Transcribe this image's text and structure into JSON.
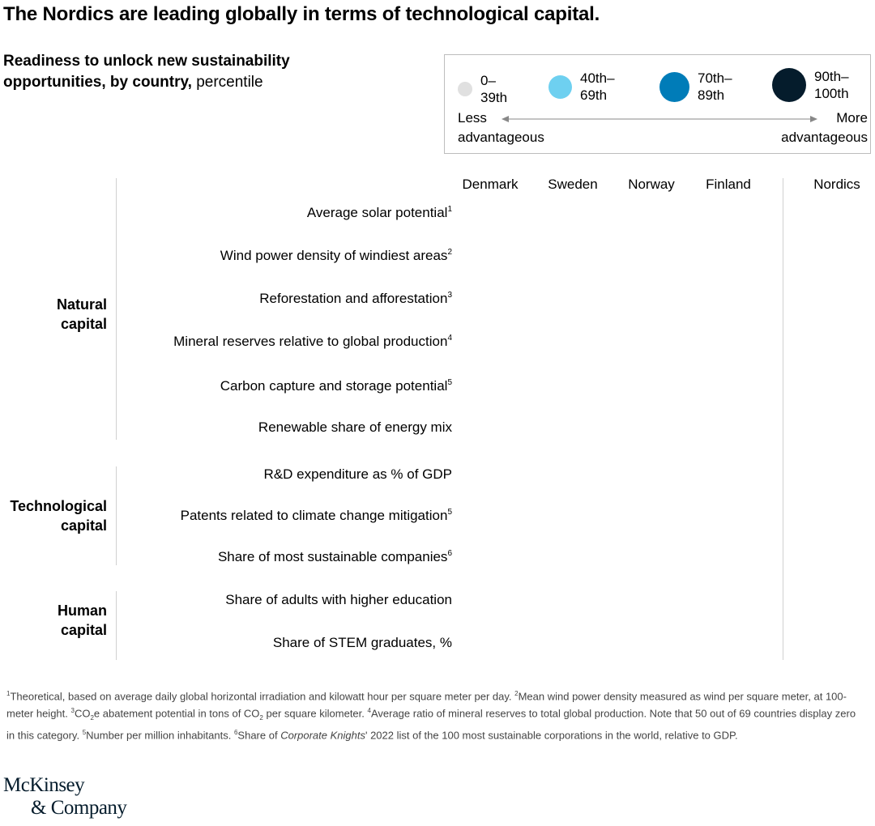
{
  "title": "The Nordics are leading globally in terms of technological capital.",
  "subtitle": {
    "bold": "Readiness to unlock new sustainability opportunities, by country,",
    "normal": " percentile"
  },
  "legend": {
    "items": [
      {
        "label_line1": "0–",
        "label_line2": "39th",
        "color": "#e0e0e0"
      },
      {
        "label_line1": "40th–",
        "label_line2": "69th",
        "color": "#6ed0f0"
      },
      {
        "label_line1": "70th–",
        "label_line2": "89th",
        "color": "#007cb8"
      },
      {
        "label_line1": "90th–",
        "label_line2": "100th",
        "color": "#051c2c"
      }
    ],
    "less_line1": "Less",
    "less_line2": "advantageous",
    "more_line1": "More",
    "more_line2": "advantageous"
  },
  "chart_data": {
    "type": "table",
    "columns": [
      "Denmark",
      "Sweden",
      "Norway",
      "Finland",
      "Nordics"
    ],
    "groups": [
      {
        "label_line1": "Natural",
        "label_line2": "capital",
        "rows": [
          {
            "label": "Average solar potential",
            "note": "1"
          },
          {
            "label": "Wind power density of windiest areas",
            "note": "2"
          },
          {
            "label": "Reforestation and afforestation",
            "note": "3"
          },
          {
            "label": "Mineral reserves relative to global production",
            "note": "4"
          },
          {
            "label": "Carbon capture and storage potential",
            "note": "5"
          },
          {
            "label": "Renewable share of energy mix",
            "note": ""
          }
        ]
      },
      {
        "label_line1": "Technological",
        "label_line2": "capital",
        "rows": [
          {
            "label": "R&D expenditure as % of GDP",
            "note": ""
          },
          {
            "label": "Patents related to climate change mitigation",
            "note": "5"
          },
          {
            "label": "Share of most sustainable companies",
            "note": "6"
          }
        ]
      },
      {
        "label_line1": "Human",
        "label_line2": "capital",
        "rows": [
          {
            "label": "Share of adults with higher education",
            "note": ""
          },
          {
            "label": "Share of STEM graduates, %",
            "note": ""
          }
        ]
      }
    ]
  },
  "footnotes": {
    "n1": "1",
    "t1": "Theoretical, based on average daily global horizontal irradiation and kilowatt hour per square meter per day. ",
    "n2": "2",
    "t2": "Mean wind power density measured as wind per square meter, at 100-meter height. ",
    "n3": "3",
    "t3a": "CO",
    "t3sub": "2",
    "t3b": "e abatement potential in tons of CO",
    "t3sub2": "2",
    "t3c": " per square kilometer. ",
    "n4": "4",
    "t4": "Average ratio of mineral reserves to total global production. Note that 50 out of 69 countries display zero in this category. ",
    "n5": "5",
    "t5": "Number per million inhabitants. ",
    "n6": "6",
    "t6a": "Share of ",
    "t6i": "Corporate Knights",
    "t6b": "' 2022 list of the 100 most sustainable corporations in the world, relative to GDP."
  },
  "logo": {
    "line1": "McKinsey",
    "line2": "& Company"
  }
}
